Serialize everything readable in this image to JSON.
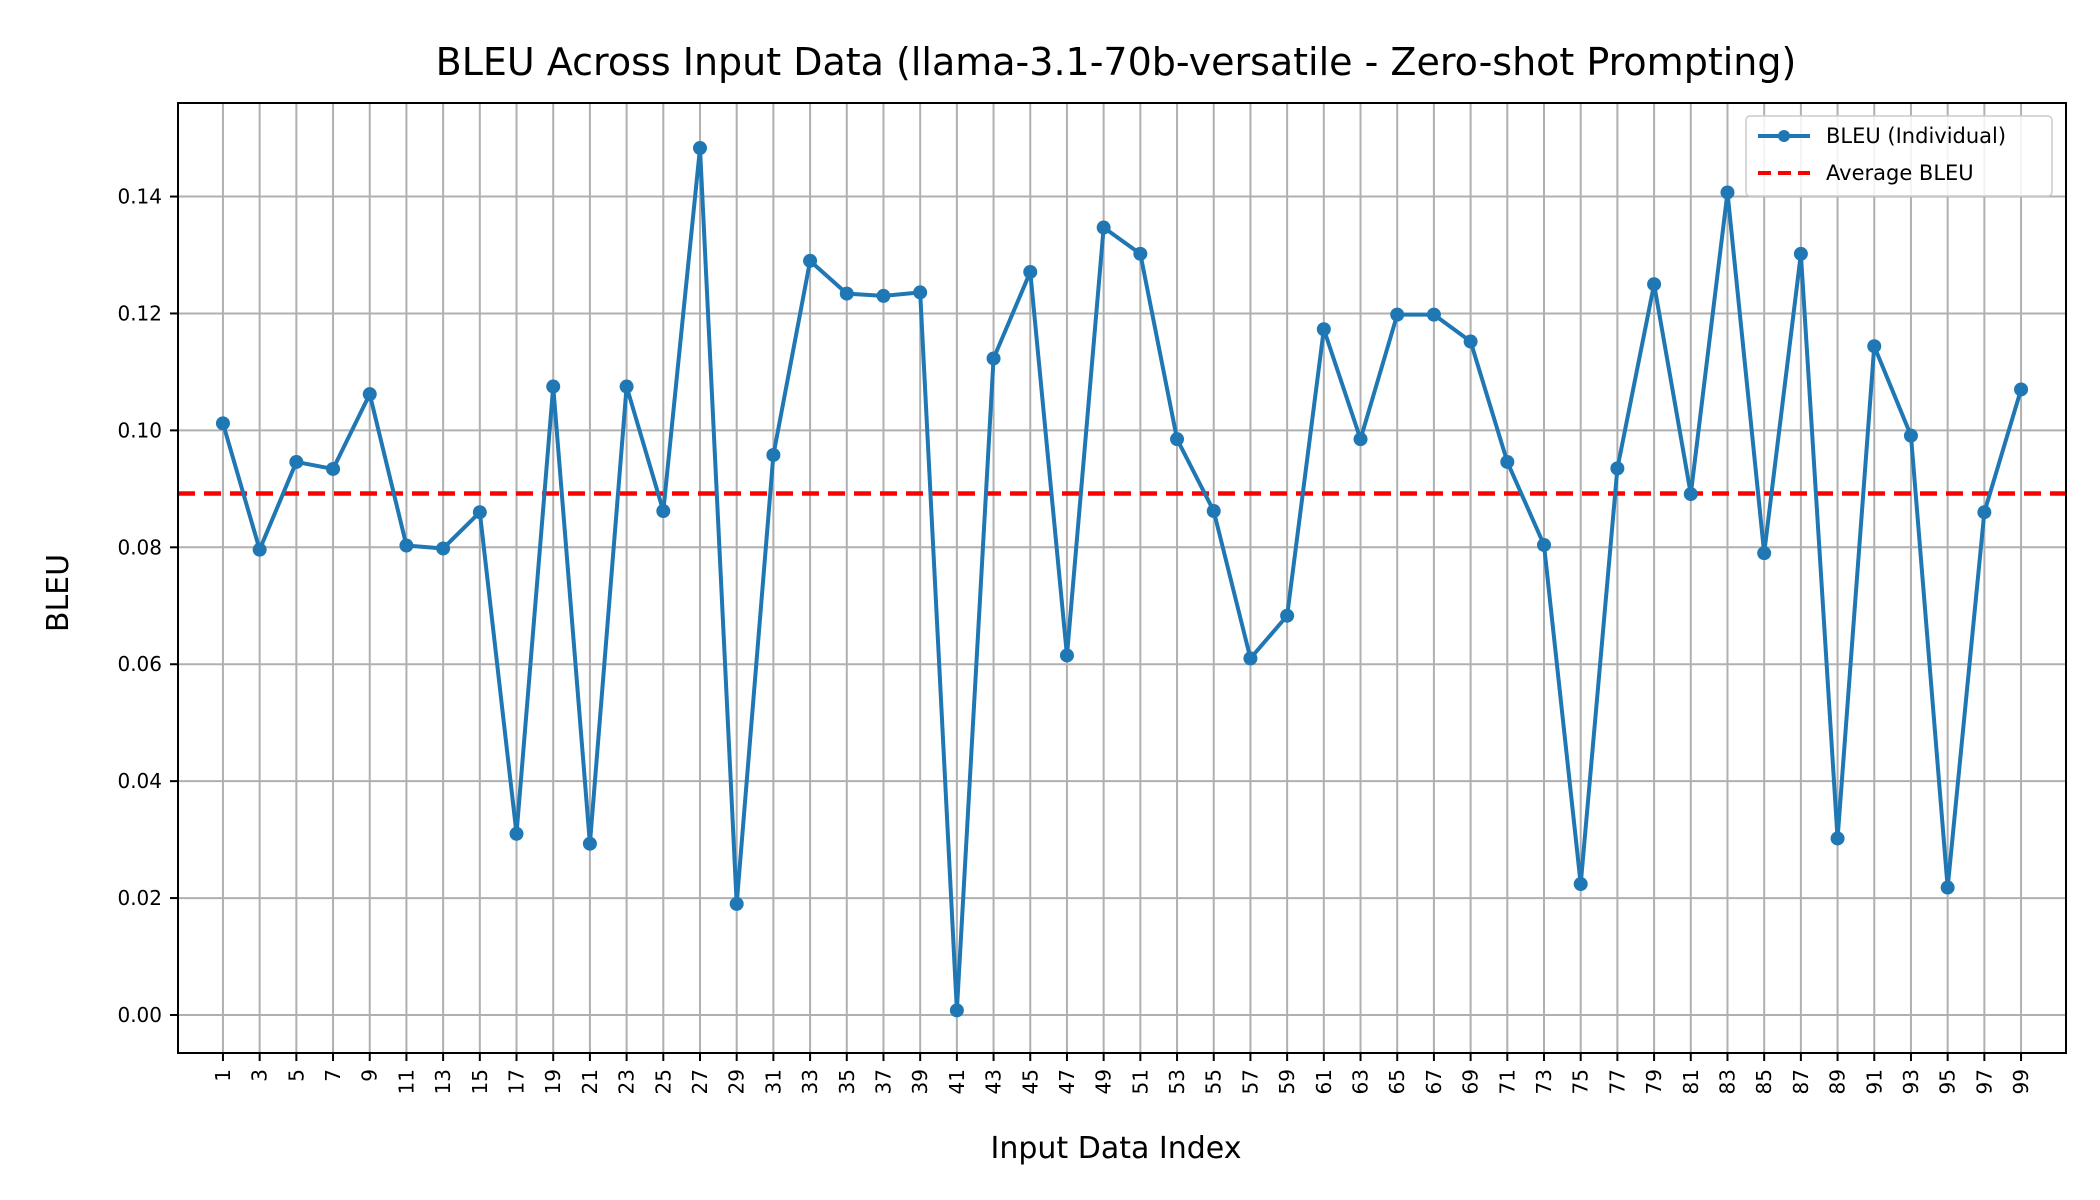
{
  "chart_data": {
    "type": "line",
    "title": "BLEU Across Input Data (llama-3.1-70b-versatile - Zero-shot Prompting)",
    "xlabel": "Input Data Index",
    "ylabel": "BLEU",
    "x": [
      1,
      3,
      5,
      7,
      9,
      11,
      13,
      15,
      17,
      19,
      21,
      23,
      25,
      27,
      29,
      31,
      33,
      35,
      37,
      39,
      41,
      43,
      45,
      47,
      49,
      51,
      53,
      55,
      57,
      59,
      61,
      63,
      65,
      67,
      69,
      71,
      73,
      75,
      77,
      79,
      81,
      83,
      85,
      87,
      89,
      91,
      93,
      95,
      97,
      99
    ],
    "x_ticks": [
      "1",
      "3",
      "5",
      "7",
      "9",
      "11",
      "13",
      "15",
      "17",
      "19",
      "21",
      "23",
      "25",
      "27",
      "29",
      "31",
      "33",
      "35",
      "37",
      "39",
      "41",
      "43",
      "45",
      "47",
      "49",
      "51",
      "53",
      "55",
      "57",
      "59",
      "61",
      "63",
      "65",
      "67",
      "69",
      "71",
      "73",
      "75",
      "77",
      "79",
      "81",
      "83",
      "85",
      "87",
      "89",
      "91",
      "93",
      "95",
      "97",
      "99"
    ],
    "y_ticks": [
      "0.00",
      "0.02",
      "0.04",
      "0.06",
      "0.08",
      "0.10",
      "0.12",
      "0.14"
    ],
    "ylim": [
      -0.0065,
      0.156
    ],
    "grid": true,
    "legend_position": "top-right",
    "series": [
      {
        "name": "BLEU (Individual)",
        "color": "#1f77b4",
        "values": [
          0.1012,
          0.0796,
          0.0946,
          0.0934,
          0.1062,
          0.0803,
          0.0798,
          0.086,
          0.031,
          0.1075,
          0.0293,
          0.1075,
          0.0862,
          0.1483,
          0.019,
          0.0958,
          0.129,
          0.1234,
          0.123,
          0.1236,
          0.0008,
          0.1123,
          0.1271,
          0.0615,
          0.1347,
          0.1302,
          0.0985,
          0.0862,
          0.061,
          0.0683,
          0.1173,
          0.0985,
          0.1198,
          0.1198,
          0.1152,
          0.0946,
          0.0804,
          0.0224,
          0.0935,
          0.125,
          0.0891,
          0.1407,
          0.079,
          0.1302,
          0.0302,
          0.1144,
          0.0991,
          0.0218,
          0.086,
          0.107
        ]
      },
      {
        "name": "Average BLEU",
        "color": "#ff0000",
        "value": 0.0892
      }
    ]
  }
}
